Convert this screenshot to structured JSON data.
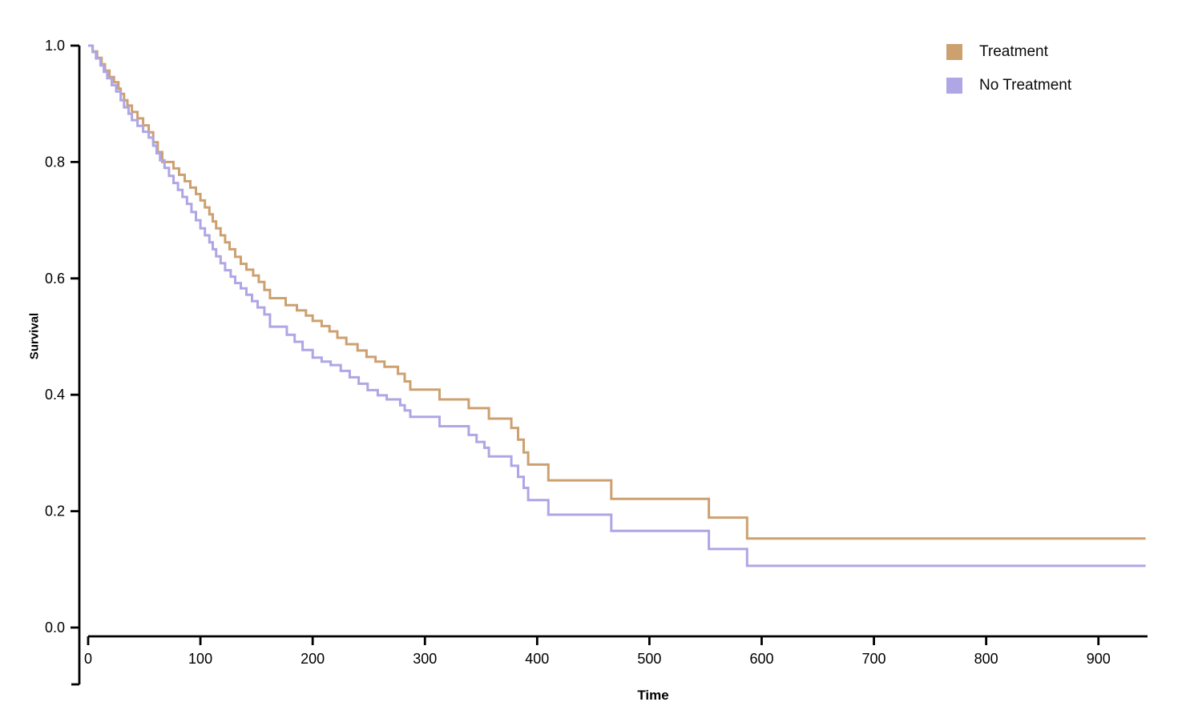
{
  "chart_data": {
    "type": "line",
    "variant": "kaplan-meier-step-survival",
    "title": "",
    "xlabel": "Time",
    "ylabel": "Survival",
    "xlim": [
      0,
      942
    ],
    "ylim": [
      0,
      1.0
    ],
    "grid": false,
    "legend_position": "top-right",
    "curve_end_time": 942,
    "x_ticks": {
      "values": [
        0,
        100,
        200,
        300,
        400,
        500,
        600,
        700,
        800,
        900
      ],
      "labels": [
        "0",
        "100",
        "200",
        "300",
        "400",
        "500",
        "600",
        "700",
        "800",
        "900"
      ]
    },
    "y_ticks": {
      "values": [
        1.0,
        0.8,
        0.6,
        0.4,
        0.2,
        0.0
      ],
      "labels": [
        "1.0",
        "0.8",
        "0.6",
        "0.4",
        "0.2",
        "0.0"
      ]
    },
    "axis_color": "#000000",
    "series": [
      {
        "name": "Treatment",
        "color": "#cda070",
        "points": [
          [
            0,
            1.0
          ],
          [
            4,
            0.99
          ],
          [
            8,
            0.979
          ],
          [
            12,
            0.968
          ],
          [
            15,
            0.957
          ],
          [
            19,
            0.946
          ],
          [
            23,
            0.937
          ],
          [
            27,
            0.926
          ],
          [
            29,
            0.917
          ],
          [
            32,
            0.906
          ],
          [
            35,
            0.897
          ],
          [
            39,
            0.886
          ],
          [
            44,
            0.875
          ],
          [
            49,
            0.863
          ],
          [
            54,
            0.851
          ],
          [
            58,
            0.834
          ],
          [
            62,
            0.817
          ],
          [
            66,
            0.8
          ],
          [
            76,
            0.789
          ],
          [
            81,
            0.778
          ],
          [
            86,
            0.767
          ],
          [
            91,
            0.756
          ],
          [
            96,
            0.745
          ],
          [
            100,
            0.734
          ],
          [
            104,
            0.722
          ],
          [
            108,
            0.71
          ],
          [
            111,
            0.698
          ],
          [
            114,
            0.686
          ],
          [
            118,
            0.674
          ],
          [
            122,
            0.662
          ],
          [
            126,
            0.65
          ],
          [
            131,
            0.637
          ],
          [
            136,
            0.625
          ],
          [
            141,
            0.615
          ],
          [
            147,
            0.605
          ],
          [
            152,
            0.594
          ],
          [
            157,
            0.58
          ],
          [
            162,
            0.566
          ],
          [
            176,
            0.554
          ],
          [
            186,
            0.545
          ],
          [
            194,
            0.536
          ],
          [
            200,
            0.527
          ],
          [
            208,
            0.518
          ],
          [
            215,
            0.509
          ],
          [
            222,
            0.498
          ],
          [
            230,
            0.487
          ],
          [
            240,
            0.476
          ],
          [
            248,
            0.465
          ],
          [
            256,
            0.457
          ],
          [
            264,
            0.448
          ],
          [
            276,
            0.436
          ],
          [
            282,
            0.423
          ],
          [
            287,
            0.409
          ],
          [
            313,
            0.392
          ],
          [
            339,
            0.377
          ],
          [
            357,
            0.359
          ],
          [
            377,
            0.343
          ],
          [
            383,
            0.323
          ],
          [
            388,
            0.301
          ],
          [
            392,
            0.28
          ],
          [
            410,
            0.253
          ],
          [
            466,
            0.221
          ],
          [
            553,
            0.189
          ],
          [
            587,
            0.153
          ]
        ]
      },
      {
        "name": "No Treatment",
        "color": "#aea6e5",
        "points": [
          [
            0,
            1.0
          ],
          [
            4,
            0.989
          ],
          [
            7,
            0.978
          ],
          [
            11,
            0.966
          ],
          [
            14,
            0.955
          ],
          [
            17,
            0.944
          ],
          [
            21,
            0.932
          ],
          [
            25,
            0.921
          ],
          [
            29,
            0.906
          ],
          [
            32,
            0.894
          ],
          [
            36,
            0.883
          ],
          [
            39,
            0.872
          ],
          [
            44,
            0.862
          ],
          [
            49,
            0.852
          ],
          [
            54,
            0.842
          ],
          [
            58,
            0.828
          ],
          [
            61,
            0.815
          ],
          [
            64,
            0.803
          ],
          [
            68,
            0.79
          ],
          [
            72,
            0.776
          ],
          [
            76,
            0.764
          ],
          [
            80,
            0.752
          ],
          [
            84,
            0.74
          ],
          [
            88,
            0.728
          ],
          [
            92,
            0.714
          ],
          [
            96,
            0.7
          ],
          [
            100,
            0.686
          ],
          [
            104,
            0.674
          ],
          [
            108,
            0.662
          ],
          [
            111,
            0.65
          ],
          [
            114,
            0.638
          ],
          [
            118,
            0.626
          ],
          [
            122,
            0.614
          ],
          [
            127,
            0.603
          ],
          [
            131,
            0.592
          ],
          [
            136,
            0.583
          ],
          [
            141,
            0.572
          ],
          [
            146,
            0.561
          ],
          [
            151,
            0.55
          ],
          [
            157,
            0.538
          ],
          [
            162,
            0.517
          ],
          [
            177,
            0.503
          ],
          [
            184,
            0.491
          ],
          [
            191,
            0.477
          ],
          [
            200,
            0.464
          ],
          [
            208,
            0.457
          ],
          [
            216,
            0.451
          ],
          [
            225,
            0.441
          ],
          [
            233,
            0.43
          ],
          [
            241,
            0.419
          ],
          [
            249,
            0.408
          ],
          [
            258,
            0.399
          ],
          [
            266,
            0.392
          ],
          [
            278,
            0.382
          ],
          [
            282,
            0.373
          ],
          [
            287,
            0.362
          ],
          [
            313,
            0.346
          ],
          [
            339,
            0.331
          ],
          [
            346,
            0.319
          ],
          [
            353,
            0.309
          ],
          [
            357,
            0.294
          ],
          [
            377,
            0.278
          ],
          [
            383,
            0.259
          ],
          [
            388,
            0.24
          ],
          [
            392,
            0.219
          ],
          [
            410,
            0.194
          ],
          [
            466,
            0.166
          ],
          [
            553,
            0.135
          ],
          [
            587,
            0.106
          ]
        ]
      }
    ]
  }
}
